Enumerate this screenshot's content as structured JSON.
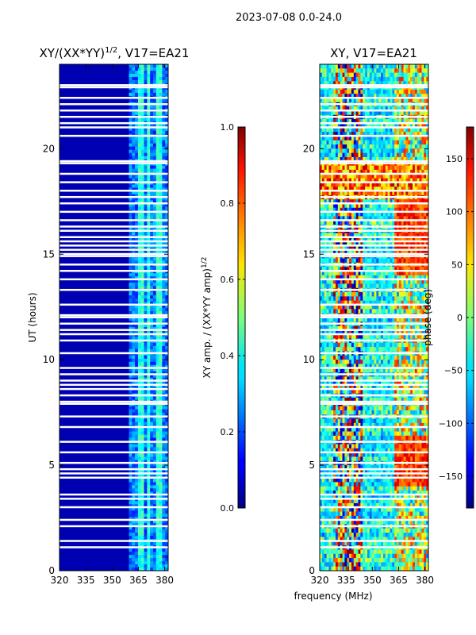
{
  "chart_data": [
    {
      "type": "heatmap",
      "title": "XY/(XX*YY)",
      "title_exponent": "1/2",
      "title_suffix": ", V17=EA21",
      "xlabel": "",
      "ylabel": "UT (hours)",
      "xlim": [
        320,
        382
      ],
      "ylim": [
        0,
        24
      ],
      "xticks": [
        "320",
        "335",
        "350",
        "365",
        "380"
      ],
      "xtick_values": [
        320,
        335,
        350,
        365,
        380
      ],
      "yticks": [
        "0",
        "5",
        "10",
        "15",
        "20"
      ],
      "ytick_values": [
        0,
        5,
        10,
        15,
        20
      ],
      "colormap": "jet",
      "colorbar": {
        "label": "XY amp. / (XX*YY amp)",
        "label_exponent": "1/2",
        "range": [
          0.0,
          1.0
        ],
        "ticks": [
          "0.0",
          "0.2",
          "0.4",
          "0.6",
          "0.8",
          "1.0"
        ],
        "tick_values": [
          0.0,
          0.2,
          0.4,
          0.6,
          0.8,
          1.0
        ]
      },
      "description_values": {
        "background_level": 0.05,
        "band_360_382_level": 0.3
      }
    },
    {
      "type": "heatmap",
      "title": "XY, V17=EA21",
      "xlabel": "frequency (MHz)",
      "ylabel": "",
      "xlim": [
        320,
        382
      ],
      "ylim": [
        0,
        24
      ],
      "xticks": [
        "320",
        "335",
        "350",
        "365",
        "380"
      ],
      "xtick_values": [
        320,
        335,
        350,
        365,
        380
      ],
      "yticks": [
        "0",
        "5",
        "10",
        "15",
        "20"
      ],
      "ytick_values": [
        0,
        5,
        10,
        15,
        20
      ],
      "colormap": "jet",
      "colorbar": {
        "label": "phase (deg)",
        "range": [
          -180,
          180
        ],
        "ticks": [
          "150",
          "100",
          "50",
          "0",
          "−50",
          "−100",
          "−150"
        ],
        "tick_values": [
          150,
          100,
          50,
          0,
          -50,
          -100,
          -150
        ]
      }
    }
  ],
  "suptitle": "2023-07-08 0.0-24.0",
  "flagged_hours": [
    1.1,
    1.4,
    2.1,
    2.4,
    3.0,
    3.4,
    3.6,
    4.4,
    4.6,
    4.8,
    5.1,
    5.6,
    6.1,
    6.8,
    7.3,
    7.9,
    8.0,
    8.3,
    8.6,
    8.8,
    9.0,
    9.3,
    9.6,
    10.3,
    10.9,
    11.2,
    11.4,
    11.7,
    12.0,
    12.1,
    12.6,
    13.3,
    13.8,
    14.2,
    14.5,
    14.9,
    15.0,
    15.2,
    15.4,
    15.6,
    15.8,
    16.1,
    16.3,
    16.6,
    17.0,
    17.4,
    17.7,
    18.0,
    18.4,
    18.8,
    19.3,
    19.4,
    20.6,
    21.0,
    21.2,
    21.5,
    21.8,
    22.1,
    22.4,
    22.9,
    23.0
  ]
}
